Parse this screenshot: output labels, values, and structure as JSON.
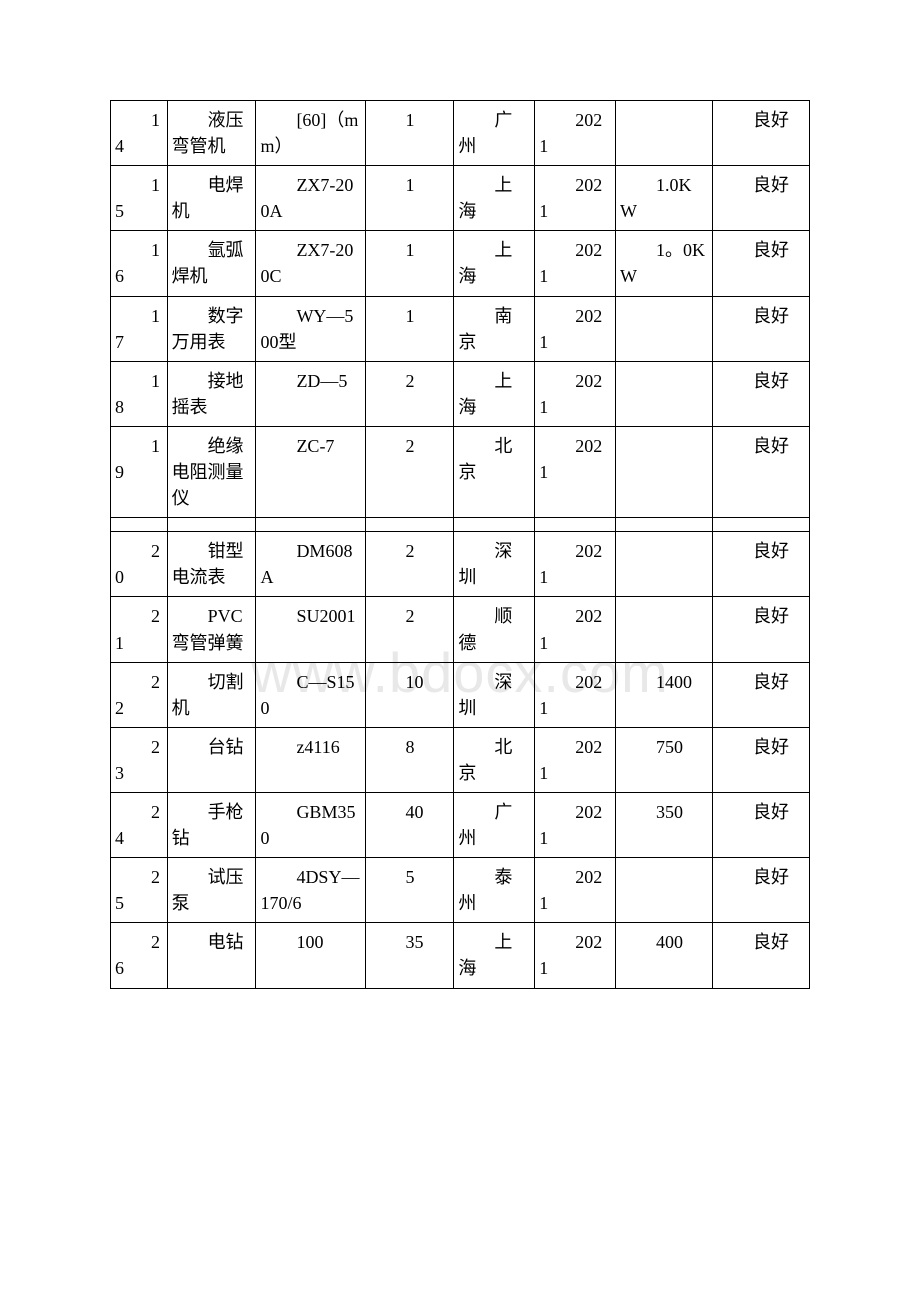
{
  "watermark": "www.bdocx.com",
  "table": {
    "columns": 8,
    "column_widths_pct": [
      7,
      11,
      13.5,
      11,
      10,
      10,
      12,
      12
    ],
    "border_color": "#000000",
    "background_color": "#ffffff",
    "font_family": "SimSun",
    "font_size_pt": 14,
    "text_indent_em": 2,
    "rows": [
      {
        "c0": "14",
        "c1": "液压弯管机",
        "c2": "[60]（mm）",
        "c3": "1",
        "c4": "广州",
        "c5": "2021",
        "c6": "",
        "c7": "良好"
      },
      {
        "c0": "15",
        "c1": "电焊机",
        "c2": "ZX7-200A",
        "c3": "1",
        "c4": "上海",
        "c5": "2021",
        "c6": "1.0KW",
        "c7": "良好"
      },
      {
        "c0": "16",
        "c1": "氩弧焊机",
        "c2": "ZX7-200C",
        "c3": "1",
        "c4": "上海",
        "c5": "2021",
        "c6": "1。0KW",
        "c7": "良好"
      },
      {
        "c0": "17",
        "c1": "数字万用表",
        "c2": "WY—500型",
        "c3": "1",
        "c4": "南京",
        "c5": "2021",
        "c6": "",
        "c7": "良好"
      },
      {
        "c0": "18",
        "c1": "接地摇表",
        "c2": "ZD—5",
        "c3": "2",
        "c4": "上海",
        "c5": "2021",
        "c6": "",
        "c7": "良好"
      },
      {
        "c0": "19",
        "c1": "绝缘电阻测量仪",
        "c2": "ZC-7",
        "c3": "2",
        "c4": "北京",
        "c5": "2021",
        "c6": "",
        "c7": "良好"
      },
      {
        "spacer": true
      },
      {
        "c0": "20",
        "c1": "钳型电流表",
        "c2": "DM608A",
        "c3": "2",
        "c4": "深圳",
        "c5": "2021",
        "c6": "",
        "c7": "良好"
      },
      {
        "c0": "21",
        "c1": "PVC弯管弹簧",
        "c2": "SU2001",
        "c3": "2",
        "c4": "顺德",
        "c5": "2021",
        "c6": "",
        "c7": "良好"
      },
      {
        "c0": "22",
        "c1": "切割机",
        "c2": "C—S150",
        "c3": "10",
        "c4": "深圳",
        "c5": "2021",
        "c6": "1400",
        "c7": "良好"
      },
      {
        "c0": "23",
        "c1": "台钻",
        "c2": "z4116",
        "c3": "8",
        "c4": "北京",
        "c5": "2021",
        "c6": "750",
        "c7": "良好"
      },
      {
        "c0": "24",
        "c1": "手枪钻",
        "c2": "GBM350",
        "c3": "40",
        "c4": "广州",
        "c5": "2021",
        "c6": "350",
        "c7": "良好"
      },
      {
        "c0": "25",
        "c1": "试压泵",
        "c2": "4DSY—170/6",
        "c3": "5",
        "c4": "泰州",
        "c5": "2021",
        "c6": "",
        "c7": "良好"
      },
      {
        "c0": "26",
        "c1": "电钻",
        "c2": "100",
        "c3": "35",
        "c4": "上海",
        "c5": "2021",
        "c6": "400",
        "c7": "良好"
      }
    ]
  }
}
